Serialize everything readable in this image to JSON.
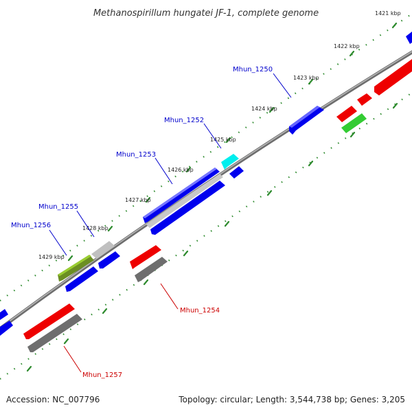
{
  "title": "Methanospirillum hungatei JF-1, complete genome",
  "footer": {
    "accession": "Accession: NC_007796",
    "summary": "Topology: circular; Length: 3,544,738 bp; Genes: 3,205"
  },
  "ticks": [
    "1421 kbp",
    "1422 kbp",
    "1423 kbp",
    "1424 kbp",
    "1425 kbp",
    "1426 kbp",
    "1427 kbp",
    "1428 kbp",
    "1429 kbp"
  ],
  "gene_labels": {
    "g1250": "Mhun_1250",
    "g1252": "Mhun_1252",
    "g1253": "Mhun_1253",
    "g1254": "Mhun_1254",
    "g1255": "Mhun_1255",
    "g1256": "Mhun_1256",
    "g1257": "Mhun_1257"
  },
  "colors": {
    "forward_gene": "#0000ee",
    "reverse_gene": "#ee0000",
    "rna_cyan": "#00eeee",
    "gray_gene": "#c8c8c8",
    "dark_gray_gene": "#6e6e6e",
    "olive_gene": "#6b8e23",
    "green_gene": "#33cc33",
    "backbone": "#808080",
    "tick_dots": "#2e8b2e",
    "forward_label": "#0000cc",
    "reverse_label": "#cc0000"
  }
}
